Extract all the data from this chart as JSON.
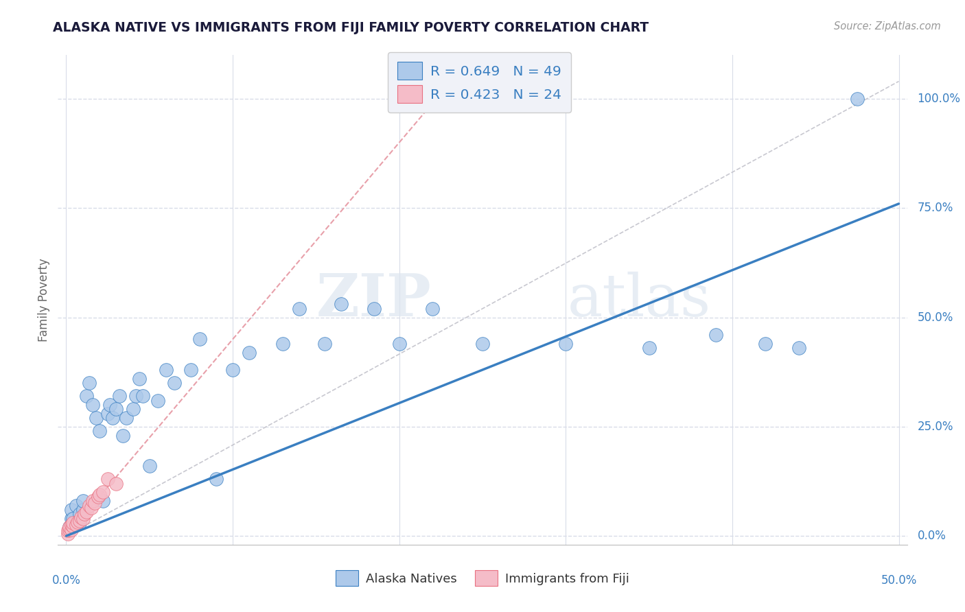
{
  "title": "ALASKA NATIVE VS IMMIGRANTS FROM FIJI FAMILY POVERTY CORRELATION CHART",
  "source": "Source: ZipAtlas.com",
  "ylabel": "Family Poverty",
  "ytick_labels": [
    "0.0%",
    "25.0%",
    "50.0%",
    "75.0%",
    "100.0%"
  ],
  "ytick_values": [
    0.0,
    0.25,
    0.5,
    0.75,
    1.0
  ],
  "xlim": [
    -0.005,
    0.505
  ],
  "ylim": [
    -0.02,
    1.1
  ],
  "R_alaska": 0.649,
  "N_alaska": 49,
  "R_fiji": 0.423,
  "N_fiji": 24,
  "alaska_color": "#adc9ea",
  "fiji_color": "#f5bcc8",
  "alaska_line_color": "#3a7fc1",
  "fiji_line_color": "#e87080",
  "fiji_dash_color": "#e8a0aa",
  "trend_dashed_color": "#c8c8d0",
  "alaska_slope": 1.52,
  "alaska_intercept": 0.0,
  "fiji_slope": 4.5,
  "fiji_intercept": 0.0,
  "diag_slope": 2.08,
  "diag_intercept": 0.0,
  "alaska_points_x": [
    0.002,
    0.003,
    0.003,
    0.004,
    0.006,
    0.008,
    0.008,
    0.01,
    0.01,
    0.012,
    0.014,
    0.016,
    0.018,
    0.02,
    0.022,
    0.025,
    0.026,
    0.028,
    0.03,
    0.032,
    0.034,
    0.036,
    0.04,
    0.042,
    0.044,
    0.046,
    0.05,
    0.055,
    0.06,
    0.065,
    0.075,
    0.08,
    0.09,
    0.1,
    0.11,
    0.13,
    0.14,
    0.155,
    0.165,
    0.185,
    0.2,
    0.22,
    0.25,
    0.3,
    0.35,
    0.39,
    0.42,
    0.44,
    0.475
  ],
  "alaska_points_y": [
    0.02,
    0.04,
    0.06,
    0.04,
    0.07,
    0.03,
    0.05,
    0.06,
    0.08,
    0.32,
    0.35,
    0.3,
    0.27,
    0.24,
    0.08,
    0.28,
    0.3,
    0.27,
    0.29,
    0.32,
    0.23,
    0.27,
    0.29,
    0.32,
    0.36,
    0.32,
    0.16,
    0.31,
    0.38,
    0.35,
    0.38,
    0.45,
    0.13,
    0.38,
    0.42,
    0.44,
    0.52,
    0.44,
    0.53,
    0.52,
    0.44,
    0.52,
    0.44,
    0.44,
    0.43,
    0.46,
    0.44,
    0.43,
    1.0
  ],
  "fiji_points_x": [
    0.001,
    0.001,
    0.002,
    0.002,
    0.003,
    0.003,
    0.004,
    0.004,
    0.006,
    0.007,
    0.008,
    0.009,
    0.01,
    0.011,
    0.012,
    0.014,
    0.015,
    0.016,
    0.017,
    0.019,
    0.02,
    0.022,
    0.025,
    0.03
  ],
  "fiji_points_y": [
    0.005,
    0.012,
    0.015,
    0.02,
    0.015,
    0.025,
    0.022,
    0.03,
    0.025,
    0.032,
    0.035,
    0.042,
    0.04,
    0.05,
    0.055,
    0.07,
    0.065,
    0.08,
    0.075,
    0.09,
    0.095,
    0.1,
    0.13,
    0.12
  ],
  "watermark_zip": "ZIP",
  "watermark_atlas": "atlas",
  "legend_box_color": "#f0f2f8",
  "background_color": "#ffffff",
  "grid_color": "#d8dce8"
}
